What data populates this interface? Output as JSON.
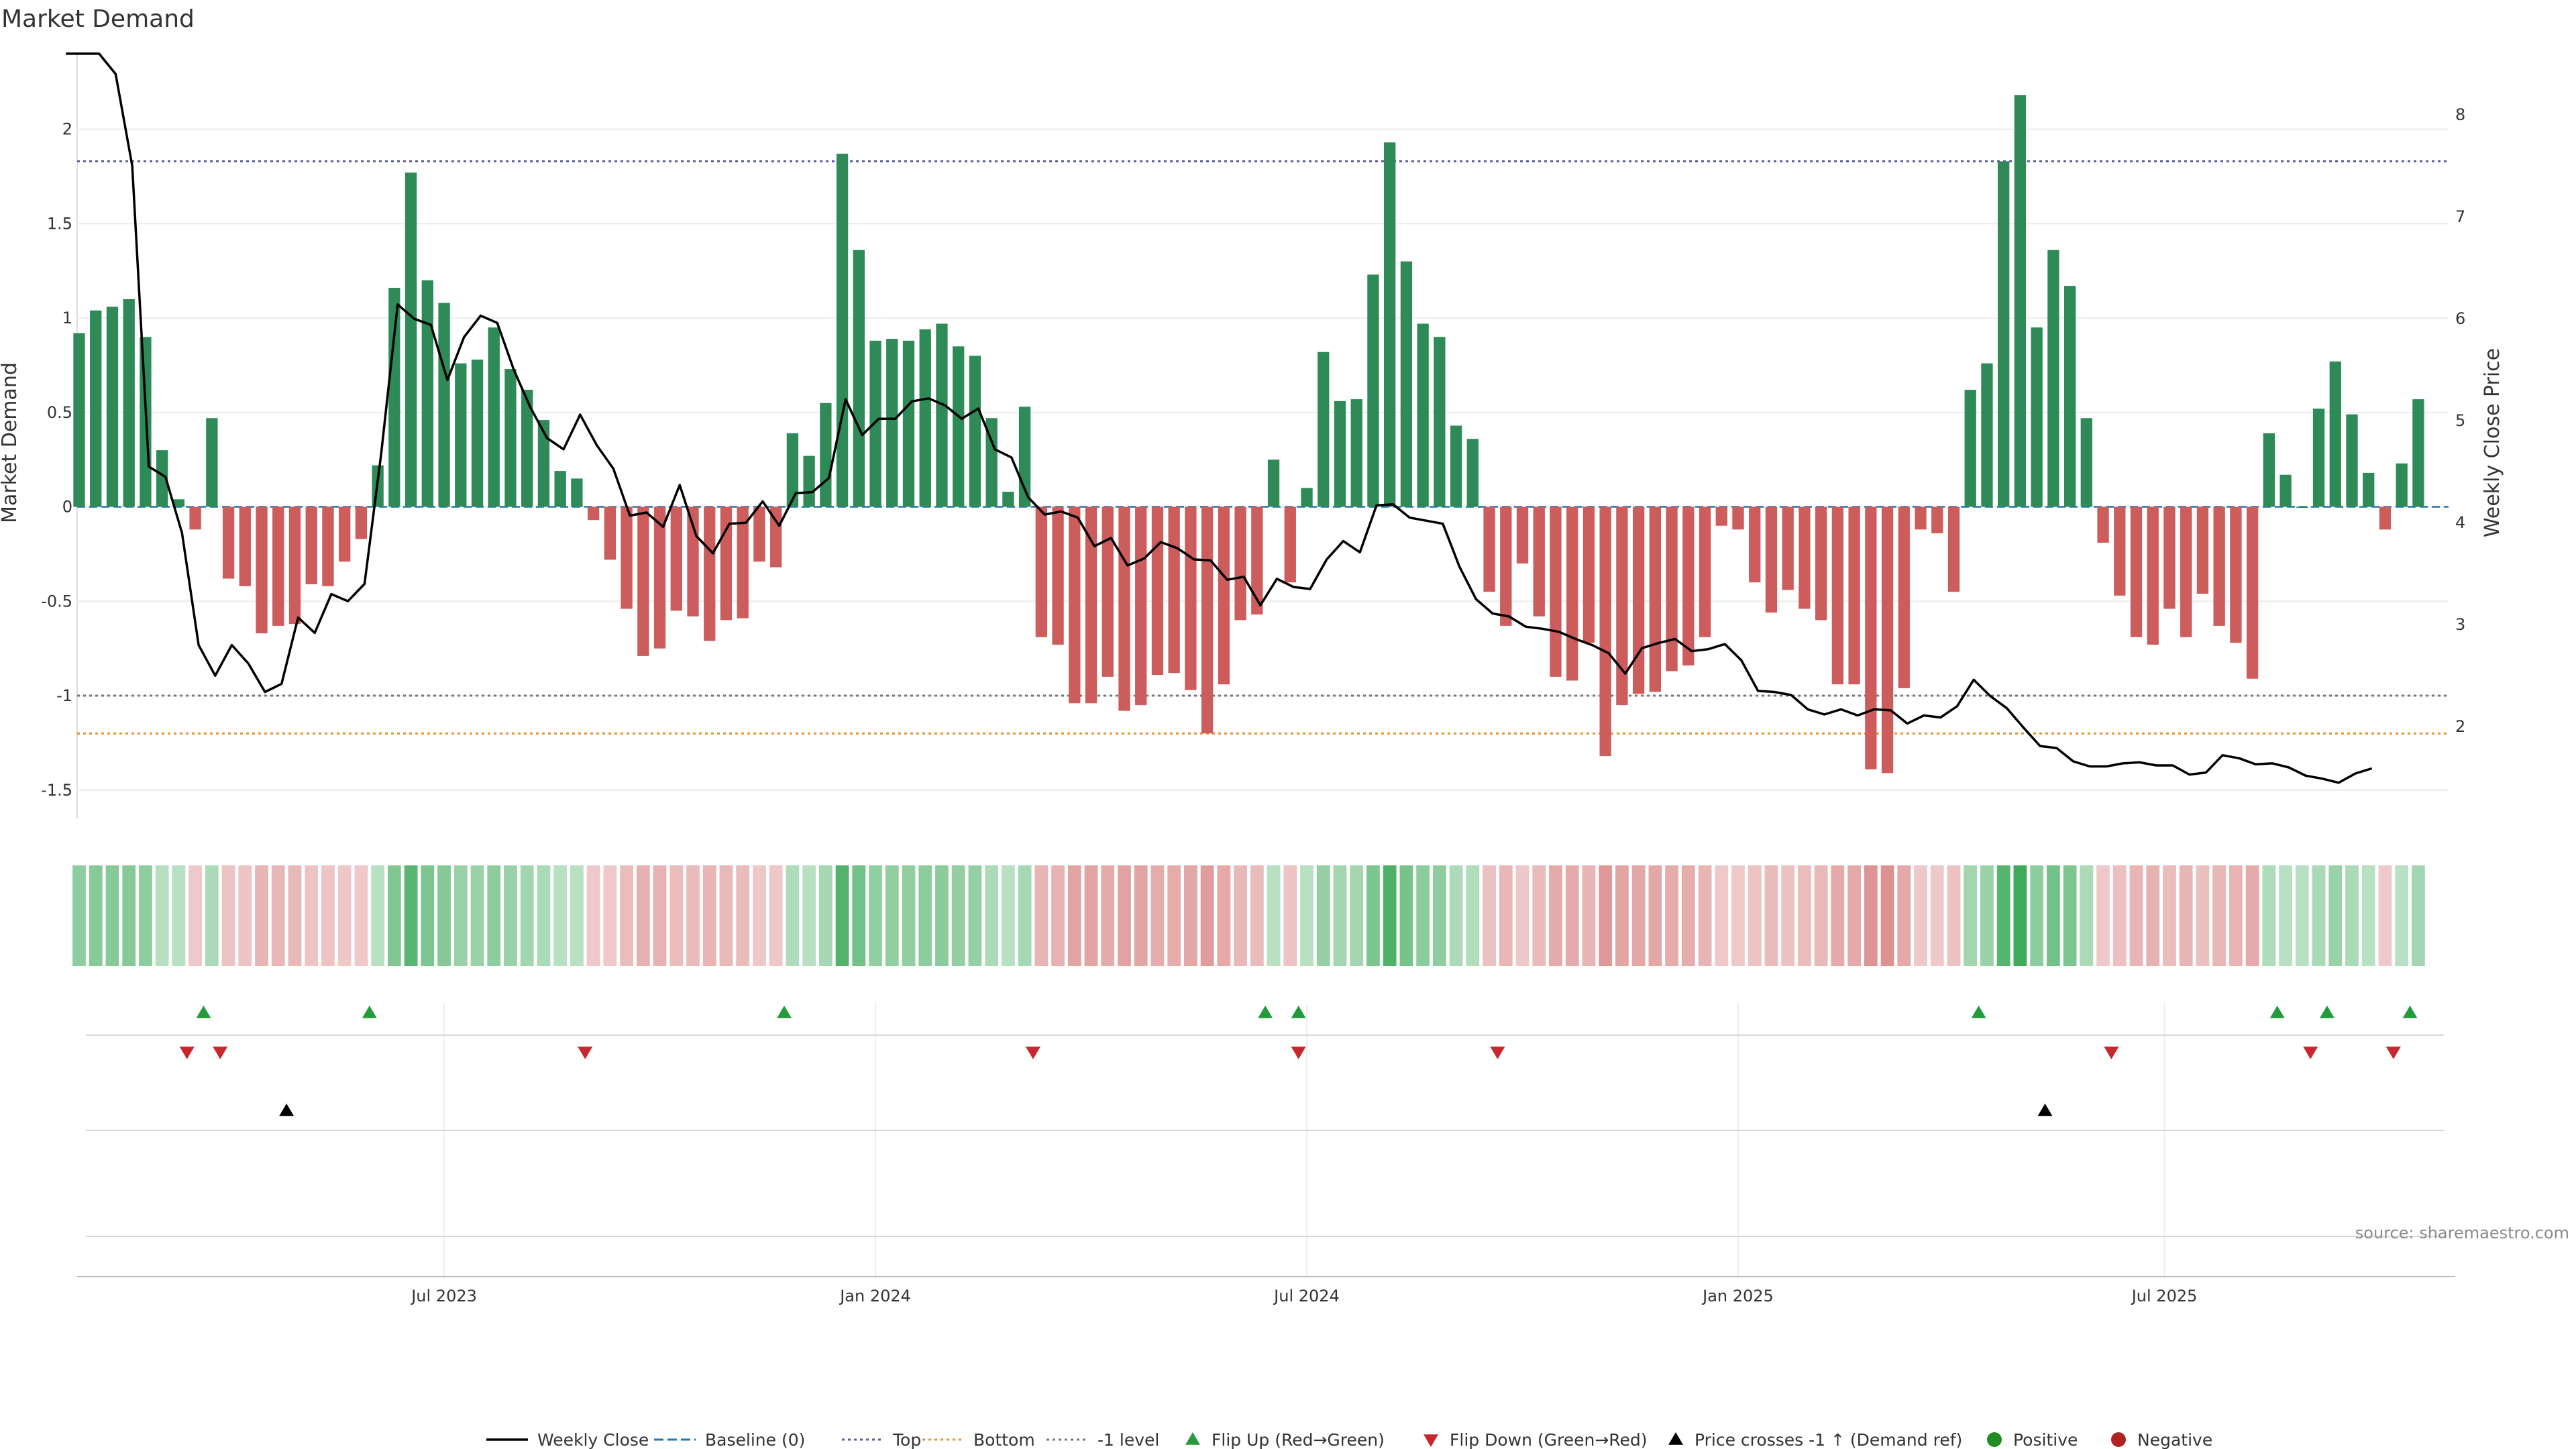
{
  "chart_data": {
    "type": "bar",
    "title": "Market Demand",
    "ylabel": "Market Demand",
    "y2label": "Weekly Close Price",
    "source": "source: sharemaestro.com",
    "ylim": [
      -1.65,
      2.4
    ],
    "y2lim": [
      1.1,
      8.6
    ],
    "yticks": [
      -1.5,
      -1,
      -0.5,
      0,
      0.5,
      1,
      1.5,
      2
    ],
    "y2ticks": [
      2,
      3,
      4,
      5,
      6,
      7,
      8
    ],
    "xticks": [
      {
        "label": "Jul 2023",
        "week": 22
      },
      {
        "label": "Jan 2024",
        "week": 48
      },
      {
        "label": "Jul 2024",
        "week": 74
      },
      {
        "label": "Jan 2025",
        "week": 100
      },
      {
        "label": "Jul 2025",
        "week": 125.7
      }
    ],
    "levels": {
      "top": 1.83,
      "bottom": -1.2,
      "minus_one": -1
    },
    "demand": [
      0.92,
      1.04,
      1.06,
      1.1,
      0.9,
      0.3,
      0.04,
      -0.12,
      0.47,
      -0.38,
      -0.42,
      -0.67,
      -0.63,
      -0.62,
      -0.41,
      -0.42,
      -0.29,
      -0.17,
      0.22,
      1.16,
      1.77,
      1.2,
      1.08,
      0.76,
      0.78,
      0.95,
      0.73,
      0.62,
      0.46,
      0.19,
      0.15,
      -0.07,
      -0.28,
      -0.54,
      -0.79,
      -0.75,
      -0.55,
      -0.58,
      -0.71,
      -0.6,
      -0.59,
      -0.29,
      -0.32,
      0.39,
      0.27,
      0.55,
      1.87,
      1.36,
      0.88,
      0.89,
      0.88,
      0.94,
      0.97,
      0.85,
      0.8,
      0.47,
      0.08,
      0.53,
      -0.69,
      -0.73,
      -1.04,
      -1.04,
      -0.9,
      -1.08,
      -1.05,
      -0.89,
      -0.88,
      -0.97,
      -1.2,
      -0.94,
      -0.6,
      -0.57,
      0.25,
      -0.4,
      0.1,
      0.82,
      0.56,
      0.57,
      1.23,
      1.93,
      1.3,
      0.97,
      0.9,
      0.43,
      0.36,
      -0.45,
      -0.63,
      -0.3,
      -0.58,
      -0.9,
      -0.92,
      -0.72,
      -1.32,
      -1.05,
      -0.99,
      -0.98,
      -0.87,
      -0.84,
      -0.69,
      -0.1,
      -0.12,
      -0.4,
      -0.56,
      -0.44,
      -0.54,
      -0.6,
      -0.94,
      -0.94,
      -1.39,
      -1.41,
      -0.96,
      -0.12,
      -0.14,
      -0.45,
      0.62,
      0.76,
      1.83,
      2.18,
      0.95,
      1.36,
      1.17,
      0.47,
      -0.19,
      -0.47,
      -0.69,
      -0.73,
      -0.54,
      -0.69,
      -0.46,
      -0.63,
      -0.72,
      -0.91,
      0.39,
      0.17,
      0.0,
      0.52,
      0.77,
      0.49,
      0.18,
      -0.12,
      0.23,
      0.57
    ],
    "price_start_week": -0.8,
    "price": [
      8.6,
      8.6,
      8.6,
      8.4,
      7.5,
      4.55,
      4.45,
      3.9,
      2.8,
      2.5,
      2.8,
      2.62,
      2.34,
      2.42,
      3.07,
      2.92,
      3.3,
      3.23,
      3.4,
      4.67,
      6.14,
      6.0,
      5.94,
      5.4,
      5.82,
      6.03,
      5.96,
      5.5,
      5.13,
      4.83,
      4.72,
      5.06,
      4.76,
      4.53,
      4.07,
      4.1,
      3.96,
      4.37,
      3.87,
      3.7,
      3.99,
      4.0,
      4.21,
      3.97,
      4.29,
      4.3,
      4.44,
      5.21,
      4.86,
      5.02,
      5.02,
      5.19,
      5.22,
      5.15,
      5.02,
      5.12,
      4.72,
      4.64,
      4.25,
      4.08,
      4.11,
      4.05,
      3.77,
      3.85,
      3.58,
      3.65,
      3.81,
      3.75,
      3.64,
      3.63,
      3.44,
      3.47,
      3.19,
      3.45,
      3.37,
      3.35,
      3.64,
      3.82,
      3.71,
      4.17,
      4.18,
      4.05,
      4.02,
      3.99,
      3.57,
      3.25,
      3.11,
      3.08,
      2.98,
      2.96,
      2.93,
      2.86,
      2.8,
      2.72,
      2.52,
      2.77,
      2.82,
      2.86,
      2.74,
      2.76,
      2.81,
      2.65,
      2.35,
      2.34,
      2.31,
      2.17,
      2.12,
      2.17,
      2.11,
      2.17,
      2.16,
      2.03,
      2.11,
      2.09,
      2.2,
      2.46,
      2.3,
      2.18,
      1.99,
      1.81,
      1.79,
      1.66,
      1.61,
      1.61,
      1.64,
      1.65,
      1.62,
      1.62,
      1.53,
      1.55,
      1.72,
      1.69,
      1.63,
      1.64,
      1.6,
      1.52,
      1.49,
      1.45,
      1.54,
      1.59
    ],
    "flip_up_weeks": [
      7.5,
      17.5,
      42.5,
      71.5,
      73.5,
      114.5,
      132.5,
      135.5,
      140.5
    ],
    "flip_down_weeks": [
      6.5,
      8.5,
      30.5,
      57.5,
      73.5,
      85.5,
      122.5,
      134.5,
      139.5
    ],
    "price_cross_weeks": [
      12.5,
      118.5
    ],
    "colors": {
      "positive": "#2e8b57",
      "negative": "#cd5c5c",
      "price": "#000000",
      "baseline": "#1f77b4",
      "top": "#5c5ca8",
      "bottom": "#e8902a",
      "minus_one": "#777777",
      "flip_up": "#239b3c",
      "flip_down": "#c8282d",
      "cross": "#000000",
      "dot_pos": "#228b22",
      "dot_neg": "#b22222"
    },
    "legend": [
      "Weekly Close",
      "Baseline (0)",
      "Top",
      "Bottom",
      "-1 level",
      "Flip Up (Red→Green)",
      "Flip Down (Green→Red)",
      "Price crosses -1 ↑ (Demand ref)",
      "Positive",
      "Negative"
    ]
  }
}
